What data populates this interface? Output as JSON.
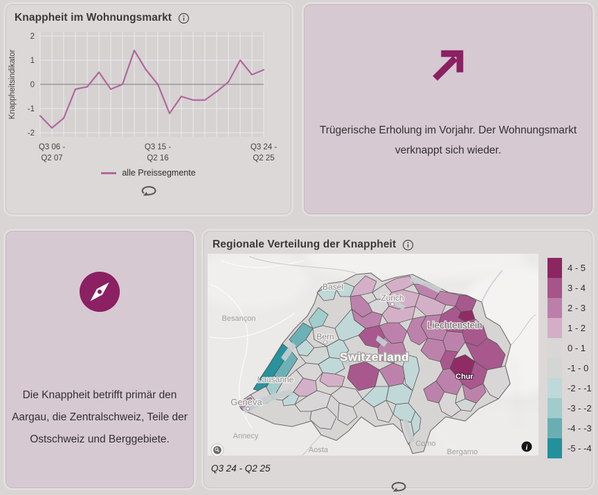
{
  "colors": {
    "accent": "#8b2063",
    "page_bg": "#d9d5d4",
    "card_gray": "#dbd8d7",
    "card_pink": "#d6c9d2",
    "line": "#b1679b"
  },
  "icons": {
    "info": "info-circle",
    "refresh": "refresh-loop-arrow",
    "trend": "arrow-up-right",
    "compass": "compass-needle",
    "attribution": "info-filled-circle",
    "search": "magnifier-circle"
  },
  "card_indicator": {
    "title": "Knappheit im Wohnungsmarkt",
    "legend_label": "alle Preissegmente"
  },
  "chart_data": {
    "type": "line",
    "title": "Knappheit im Wohnungsmarkt",
    "xlabel": "",
    "ylabel": "Knappheitsindikator",
    "ylim": [
      -2,
      2
    ],
    "yticks": [
      2,
      1,
      0,
      -1,
      -2
    ],
    "grid": true,
    "zero_line": true,
    "x_tick_labels": [
      {
        "index": 1,
        "line1": "Q3 06 -",
        "line2": "Q2 07"
      },
      {
        "index": 10,
        "line1": "Q3 15 -",
        "line2": "Q2 16"
      },
      {
        "index": 19,
        "line1": "Q3 24 -",
        "line2": "Q2 25"
      }
    ],
    "series": [
      {
        "name": "alle Preissegmente",
        "color": "#b1679b",
        "values": [
          -1.3,
          -1.8,
          -1.4,
          -0.2,
          -0.1,
          0.5,
          -0.2,
          0.0,
          1.4,
          0.6,
          0.0,
          -1.2,
          -0.5,
          -0.65,
          -0.65,
          -0.3,
          0.1,
          1.0,
          0.4,
          0.6
        ]
      }
    ]
  },
  "card_trend": {
    "text": "Trügerische Erholung im Vorjahr. Der Wohnungsmarkt verknappt sich wieder."
  },
  "card_region_note": {
    "text": "Die Knappheit betrifft primär den Aargau, die Zentralschweiz, Teile der Ostschweiz und Berggebiete."
  },
  "card_map": {
    "title": "Regionale Verteilung der Knappheit",
    "caption": "Q3 24 - Q2 25",
    "legend_bins": [
      {
        "label": "4  -  5",
        "color": "#8c2661"
      },
      {
        "label": "3  -  4",
        "color": "#a6548a"
      },
      {
        "label": "2  -  3",
        "color": "#bc7fa9"
      },
      {
        "label": "1  -  2",
        "color": "#d4aec7"
      },
      {
        "label": "0  -  1",
        "color": "#d8d6d6"
      },
      {
        "label": "-1  -  0",
        "color": "#d2d6d5"
      },
      {
        "label": "-2  -  -1",
        "color": "#bfd8d8"
      },
      {
        "label": "-3  -  -2",
        "color": "#a0cccc"
      },
      {
        "label": "-4  -  -3",
        "color": "#68afb4"
      },
      {
        "label": "-5  -  -4",
        "color": "#22919b"
      }
    ],
    "labels": [
      {
        "text": "Besançon"
      },
      {
        "text": "Annecy"
      },
      {
        "text": "Aosta"
      },
      {
        "text": "Como"
      },
      {
        "text": "Bergamo"
      },
      {
        "text": "Liechtenstein"
      },
      {
        "text": "Basel"
      },
      {
        "text": "Zurich"
      },
      {
        "text": "Bern"
      },
      {
        "text": "Lausanne"
      },
      {
        "text": "Geneva"
      },
      {
        "text": "Switzerland"
      },
      {
        "text": "Chur"
      }
    ]
  }
}
